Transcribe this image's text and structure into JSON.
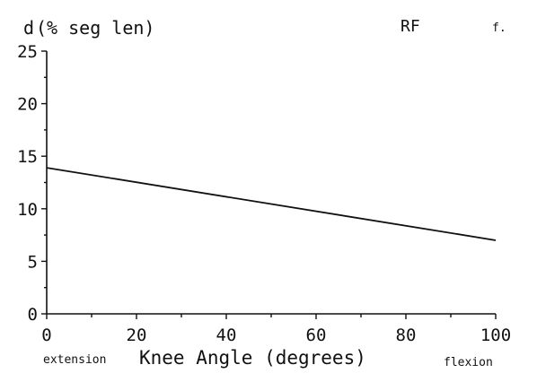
{
  "chart_data": {
    "type": "line",
    "ylabel_symbol": "d",
    "ylabel": "(% seg len)",
    "xlabel": "Knee Angle (degrees)",
    "x_left_note": "extension",
    "x_right_note": "flexion",
    "corner_label": "RF",
    "corner_note": "f.",
    "xlim": [
      0,
      100
    ],
    "ylim": [
      0,
      25
    ],
    "x_ticks": [
      0,
      20,
      40,
      60,
      80,
      100
    ],
    "y_ticks": [
      0,
      5,
      10,
      15,
      20,
      25
    ],
    "grid": false,
    "series": [
      {
        "x": [
          0,
          100
        ],
        "y": [
          13.9,
          7.0
        ]
      }
    ]
  }
}
